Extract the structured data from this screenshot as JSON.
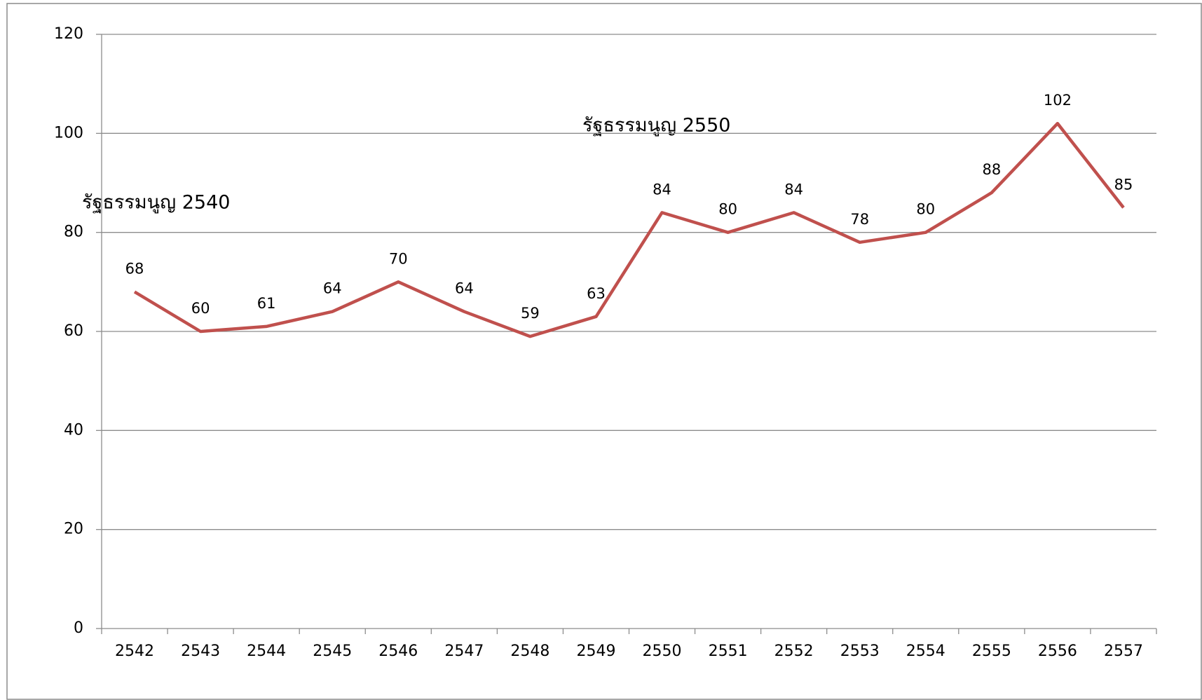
{
  "chart_data": {
    "type": "line",
    "categories": [
      "2542",
      "2543",
      "2544",
      "2545",
      "2546",
      "2547",
      "2548",
      "2549",
      "2550",
      "2551",
      "2552",
      "2553",
      "2554",
      "2555",
      "2556",
      "2557"
    ],
    "values": [
      68,
      60,
      61,
      64,
      70,
      64,
      59,
      63,
      84,
      80,
      84,
      78,
      80,
      88,
      102,
      85
    ],
    "color": "#c0504d",
    "ylim": [
      0,
      120
    ],
    "yticks": [
      0,
      20,
      40,
      60,
      80,
      100,
      120
    ],
    "grid": true,
    "annotations": [
      "รัฐธรรมนูญ 2540",
      "รัฐธรรมนูญ 2550"
    ]
  }
}
